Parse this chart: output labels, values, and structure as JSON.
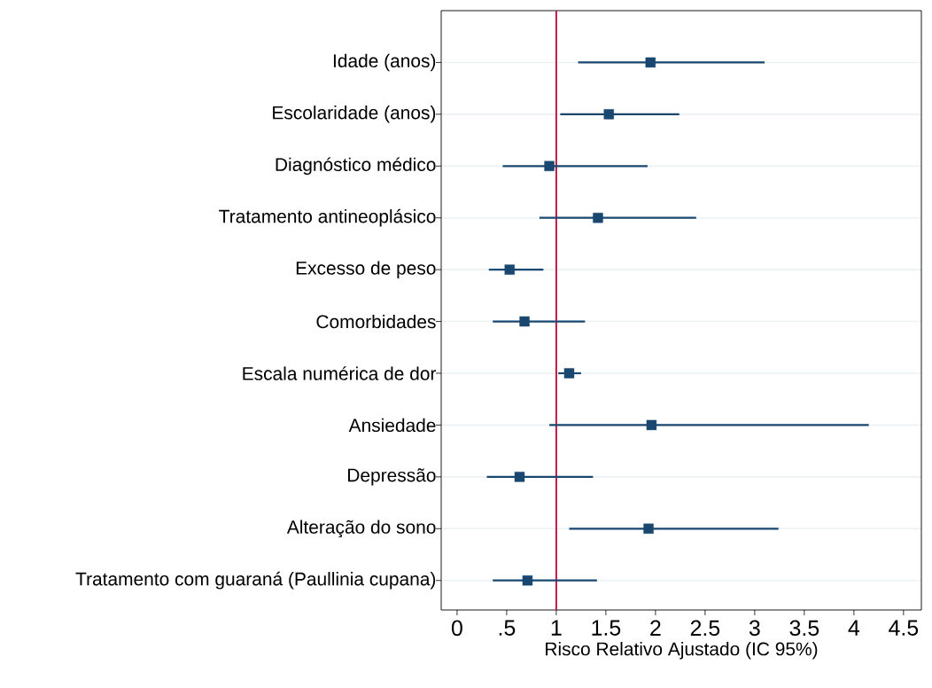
{
  "chart_data": {
    "type": "scatter",
    "orientation": "horizontal",
    "categories": [
      "Idade (anos)",
      "Escolaridade (anos)",
      "Diagnóstico médico",
      "Tratamento antineoplásico",
      "Excesso de peso",
      "Comorbidades",
      "Escala numérica de dor",
      "Ansiedade",
      "Depressão",
      "Alteração do sono",
      "Tratamento com guaraná (Paullinia cupana)"
    ],
    "values": [
      1.95,
      1.53,
      0.93,
      1.42,
      0.53,
      0.68,
      1.13,
      1.96,
      0.63,
      1.93,
      0.71
    ],
    "errors": [
      [
        1.22,
        3.1
      ],
      [
        1.04,
        2.24
      ],
      [
        0.46,
        1.92
      ],
      [
        0.83,
        2.41
      ],
      [
        0.32,
        0.87
      ],
      [
        0.36,
        1.29
      ],
      [
        1.02,
        1.25
      ],
      [
        0.93,
        4.15
      ],
      [
        0.3,
        1.37
      ],
      [
        1.13,
        3.24
      ],
      [
        0.36,
        1.41
      ]
    ],
    "color": "#1a476f",
    "marker": "square",
    "grid": "y",
    "xlim": [
      -0.16,
      4.68
    ],
    "xticks": [
      0,
      {
        "value": 0.5,
        "label": ".5"
      },
      1,
      1.5,
      2,
      2.5,
      3,
      3.5,
      4,
      4.5
    ],
    "xlabel": "Risco Relativo Ajustado (IC 95%)",
    "ref_lines": [
      {
        "axis": "x",
        "value": 1,
        "color": "#c10534"
      }
    ]
  }
}
